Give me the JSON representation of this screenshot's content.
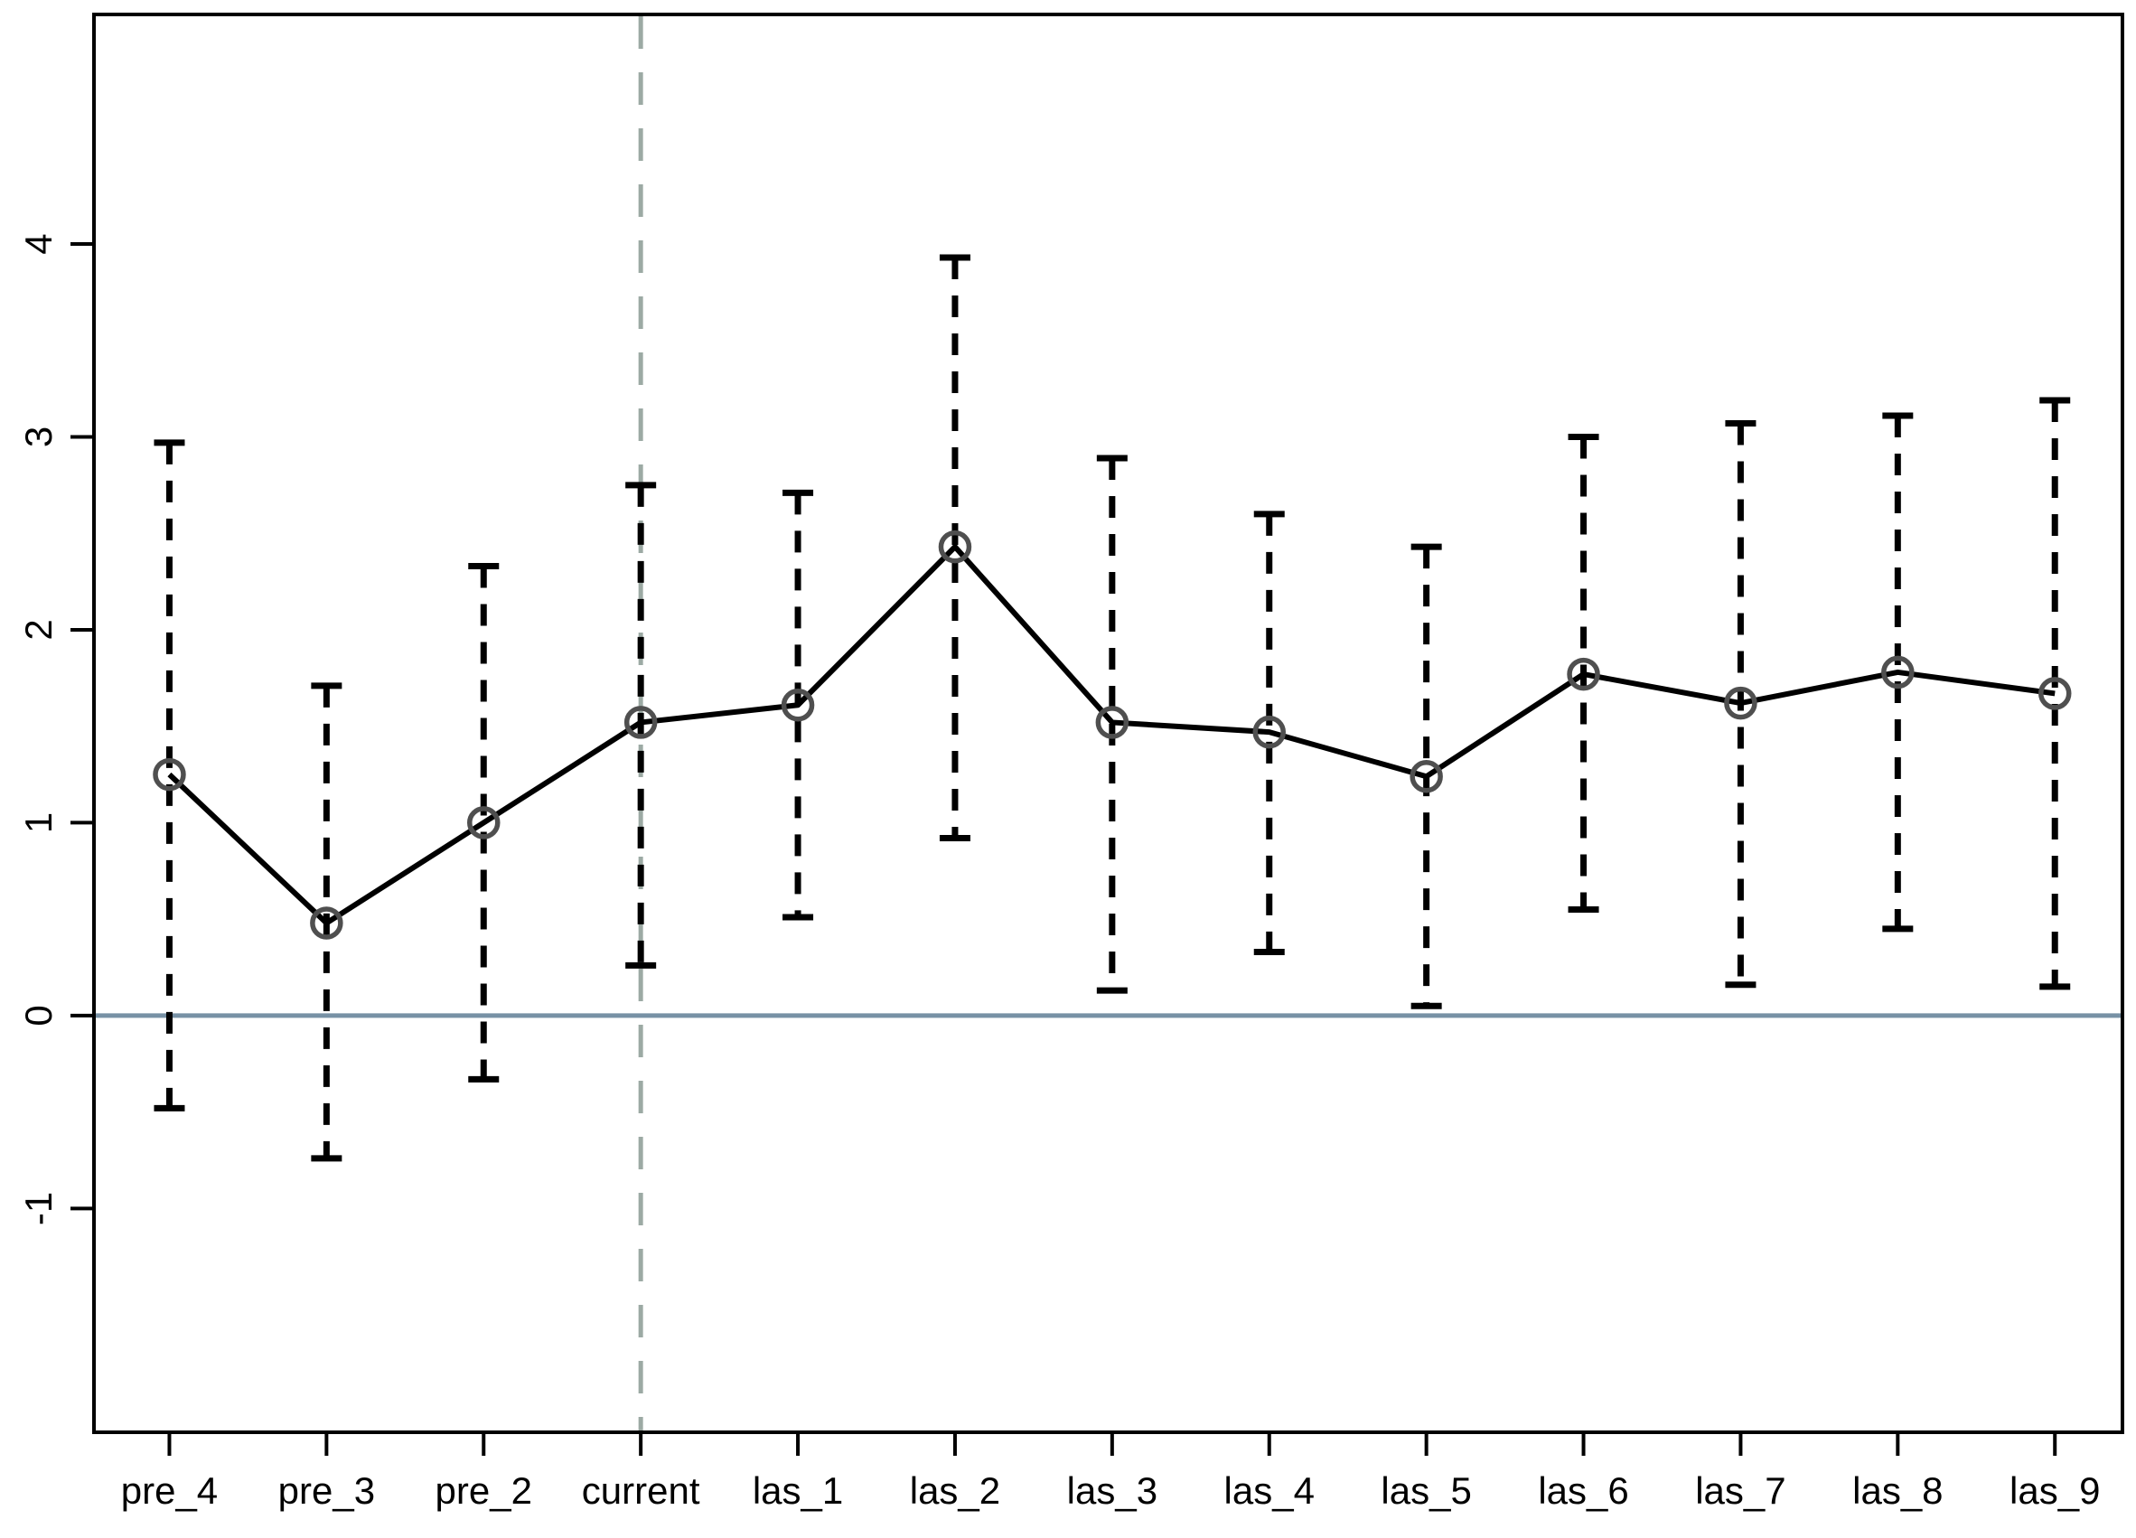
{
  "chart_data": {
    "type": "line",
    "title": "",
    "xlabel": "",
    "ylabel": "",
    "categories": [
      "pre_4",
      "pre_3",
      "pre_2",
      "current",
      "las_1",
      "las_2",
      "las_3",
      "las_4",
      "las_5",
      "las_6",
      "las_7",
      "las_8",
      "las_9"
    ],
    "series": [
      {
        "name": "estimate",
        "values": [
          1.25,
          0.48,
          1.0,
          1.52,
          1.61,
          2.43,
          1.52,
          1.47,
          1.24,
          1.77,
          1.62,
          1.78,
          1.67
        ]
      }
    ],
    "ci_lower": [
      -0.48,
      -0.74,
      -0.33,
      0.26,
      0.51,
      0.92,
      0.13,
      0.33,
      0.05,
      0.55,
      0.16,
      0.45,
      0.15
    ],
    "ci_upper": [
      2.97,
      1.71,
      2.33,
      2.75,
      2.71,
      3.93,
      2.89,
      2.6,
      2.43,
      3.0,
      3.07,
      3.11,
      3.19
    ],
    "ytick_values": [
      -1,
      0,
      1,
      2,
      3,
      4
    ],
    "ytick_labels": [
      "-1",
      "0",
      "1",
      "2",
      "3",
      "4"
    ],
    "ylim": [
      -2.16,
      5.19
    ],
    "xlim_index": [
      -0.48,
      12.43
    ],
    "zero_line_value": 0,
    "reference_line_category": "current",
    "grid": false,
    "legend_position": "none",
    "marker": "open-circle",
    "error_bar_style": "dashed",
    "colors": {
      "series_line": "#000000",
      "error_bar": "#000000",
      "marker_stroke": "#4f4f4f",
      "zero_line": "#7791a5",
      "reference_line": "#9caaa4",
      "axis": "#000000",
      "tick_label": "#000000",
      "background": "#ffffff"
    }
  }
}
